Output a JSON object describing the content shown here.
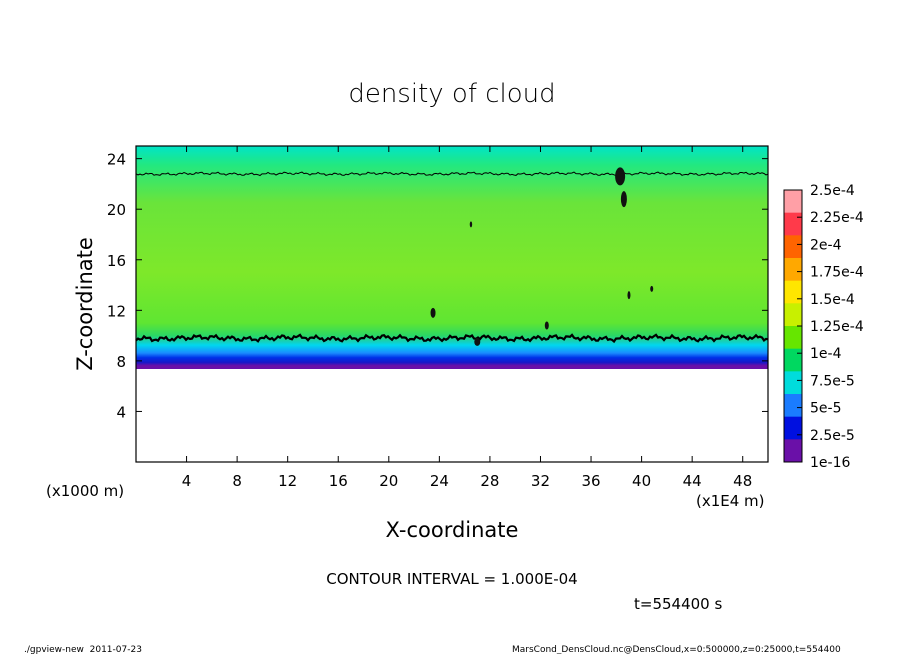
{
  "chart_data": {
    "type": "heatmap",
    "title": "density of cloud",
    "xlabel": "X-coordinate",
    "ylabel": "Z-coordinate",
    "x_unit_label": "(x1E4 m)",
    "y_unit_label": "(x1000 m)",
    "xlim": [
      0,
      50
    ],
    "ylim": [
      0,
      25
    ],
    "x_ticks": [
      4,
      8,
      12,
      16,
      20,
      24,
      28,
      32,
      36,
      40,
      44,
      48
    ],
    "y_ticks": [
      4,
      8,
      12,
      16,
      20,
      24
    ],
    "colorbar": {
      "labels": [
        "2.5e-4",
        "2.25e-4",
        "2e-4",
        "1.75e-4",
        "1.5e-4",
        "1.25e-4",
        "1e-4",
        "7.5e-5",
        "5e-5",
        "2.5e-5",
        "1e-16"
      ],
      "colors": [
        "#ff9fa6",
        "#ff3a4a",
        "#ff6400",
        "#ffa800",
        "#ffe600",
        "#c8f000",
        "#66e600",
        "#00d860",
        "#00dcdc",
        "#1a7cff",
        "#0010e0",
        "#6a10a8"
      ]
    },
    "field_profile": [
      {
        "z": 23.2,
        "value": 7.5e-05
      },
      {
        "z": 22.5,
        "value": 0.0001
      },
      {
        "z": 19.0,
        "value": 0.00014
      },
      {
        "z": 15.0,
        "value": 0.00015
      },
      {
        "z": 12.0,
        "value": 0.000135
      },
      {
        "z": 10.2,
        "value": 0.0001
      },
      {
        "z": 9.0,
        "value": 5e-05
      },
      {
        "z": 7.8,
        "value": 2e-05
      },
      {
        "z": 7.0,
        "value": 1e-16
      }
    ],
    "contour_levels": [
      {
        "value": 0.0001,
        "z": 22.8
      },
      {
        "value": 0.0001,
        "z": 9.8
      }
    ],
    "contour_interval_label": "CONTOUR INTERVAL = 1.000E-04",
    "time_label": "t=554400 s"
  },
  "footer": {
    "left": "./gpview-new  2011-07-23",
    "right": "MarsCond_DensCloud.nc@DensCloud,x=0:500000,z=0:25000,t=554400"
  }
}
